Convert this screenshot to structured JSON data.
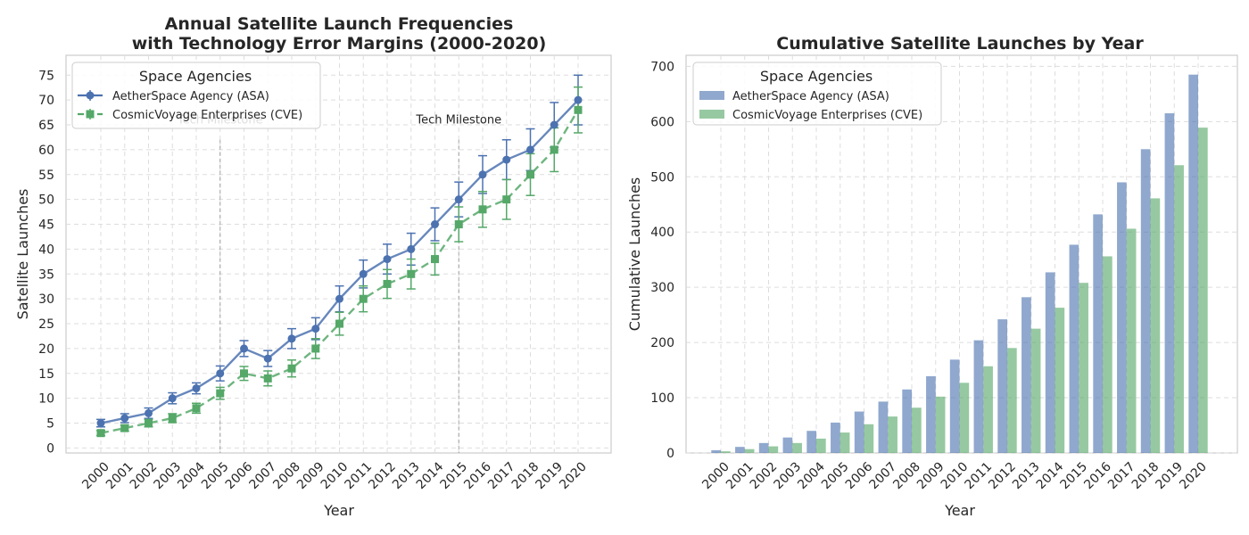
{
  "colors": {
    "asa": "#4c72b0",
    "cve": "#55a868",
    "milestone": "#808080"
  },
  "chart_data": [
    {
      "type": "line",
      "title_lines": [
        "Annual Satellite Launch Frequencies",
        "with Technology Error Margins (2000-2020)"
      ],
      "xlabel": "Year",
      "ylabel": "Satellite Launches",
      "categories": [
        "2000",
        "2001",
        "2002",
        "2003",
        "2004",
        "2005",
        "2006",
        "2007",
        "2008",
        "2009",
        "2010",
        "2011",
        "2012",
        "2013",
        "2014",
        "2015",
        "2016",
        "2017",
        "2018",
        "2019",
        "2020"
      ],
      "ylim": [
        -1,
        79
      ],
      "yticks": [
        0,
        5,
        10,
        15,
        20,
        25,
        30,
        35,
        40,
        45,
        50,
        55,
        60,
        65,
        70,
        75
      ],
      "grid": true,
      "legend": {
        "title": "Space Agencies",
        "placement": "top-left"
      },
      "series": [
        {
          "name": "AetherSpace Agency (ASA)",
          "color_key": "asa",
          "style": "solid",
          "marker": "circle",
          "values": [
            5,
            6,
            7,
            10,
            12,
            15,
            20,
            18,
            22,
            24,
            30,
            35,
            38,
            40,
            45,
            50,
            55,
            58,
            60,
            65,
            70
          ],
          "errors": [
            0.75,
            0.9,
            1.05,
            1.1,
            1.1,
            1.5,
            1.6,
            1.6,
            2.0,
            2.2,
            2.6,
            2.8,
            3.0,
            3.2,
            3.3,
            3.5,
            3.8,
            4.0,
            4.2,
            4.5,
            5.0
          ]
        },
        {
          "name": "CosmicVoyage Enterprises (CVE)",
          "color_key": "cve",
          "style": "dashed",
          "marker": "square",
          "values": [
            3,
            4,
            5,
            6,
            8,
            11,
            15,
            14,
            16,
            20,
            25,
            30,
            33,
            35,
            38,
            45,
            48,
            50,
            55,
            60,
            68
          ],
          "errors": [
            0.5,
            0.6,
            0.75,
            0.9,
            1.0,
            1.2,
            1.4,
            1.5,
            1.7,
            2.0,
            2.3,
            2.6,
            2.9,
            3.0,
            3.2,
            3.5,
            3.6,
            4.0,
            4.2,
            4.4,
            4.6
          ]
        }
      ],
      "annotations": [
        {
          "text": "Tech Milestone",
          "x": "2005",
          "y": 66
        },
        {
          "text": "Tech Milestone",
          "x": "2015",
          "y": 66
        }
      ],
      "vlines": [
        "2005",
        "2015"
      ]
    },
    {
      "type": "bar",
      "title": "Cumulative Satellite Launches by Year",
      "xlabel": "Year",
      "ylabel": "Cumulative Launches",
      "categories": [
        "2000",
        "2001",
        "2002",
        "2003",
        "2004",
        "2005",
        "2006",
        "2007",
        "2008",
        "2009",
        "2010",
        "2011",
        "2012",
        "2013",
        "2014",
        "2015",
        "2016",
        "2017",
        "2018",
        "2019",
        "2020"
      ],
      "ylim": [
        0,
        720
      ],
      "yticks": [
        0,
        100,
        200,
        300,
        400,
        500,
        600,
        700
      ],
      "grid": true,
      "legend": {
        "title": "Space Agencies",
        "placement": "top-left"
      },
      "series": [
        {
          "name": "AetherSpace Agency (ASA)",
          "color_key": "asa",
          "values": [
            5,
            11,
            18,
            28,
            40,
            55,
            75,
            93,
            115,
            139,
            169,
            204,
            242,
            282,
            327,
            377,
            432,
            490,
            550,
            615,
            685
          ]
        },
        {
          "name": "CosmicVoyage Enterprises (CVE)",
          "color_key": "cve",
          "values": [
            3,
            7,
            12,
            18,
            26,
            37,
            52,
            66,
            82,
            102,
            127,
            157,
            190,
            225,
            263,
            308,
            356,
            406,
            461,
            521,
            589
          ]
        }
      ]
    }
  ]
}
